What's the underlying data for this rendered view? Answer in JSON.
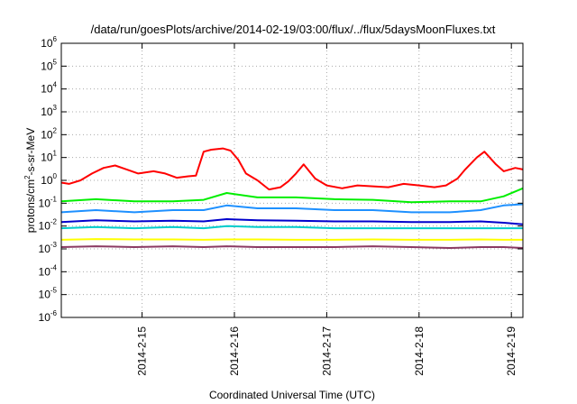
{
  "chart_data": {
    "type": "line",
    "title": "/data/run/goesPlots/archive/2014-02-19/03:00/flux/../flux/5daysMoonFluxes.txt",
    "xlabel": "Coordinated Universal Time (UTC)",
    "ylabel": {
      "pre": "protons/cm",
      "sup": "2",
      "post": "-s-sr-MeV"
    },
    "y_scale": "log",
    "ylim": [
      1e-06,
      1000000.0
    ],
    "y_ticks": [
      {
        "base": "10",
        "exp": "-6",
        "value": 1e-06
      },
      {
        "base": "10",
        "exp": "-5",
        "value": 1e-05
      },
      {
        "base": "10",
        "exp": "-4",
        "value": 0.0001
      },
      {
        "base": "10",
        "exp": "-3",
        "value": 0.001
      },
      {
        "base": "10",
        "exp": "-2",
        "value": 0.01
      },
      {
        "base": "10",
        "exp": "-1",
        "value": 0.1
      },
      {
        "base": "10",
        "exp": "0",
        "value": 1
      },
      {
        "base": "10",
        "exp": "1",
        "value": 10
      },
      {
        "base": "10",
        "exp": "2",
        "value": 100
      },
      {
        "base": "10",
        "exp": "3",
        "value": 1000
      },
      {
        "base": "10",
        "exp": "4",
        "value": 10000
      },
      {
        "base": "10",
        "exp": "5",
        "value": 100000
      },
      {
        "base": "10",
        "exp": "6",
        "value": 1000000
      }
    ],
    "xlim": [
      "2014-02-14T03:00",
      "2014-02-19T03:00"
    ],
    "x_ticks": [
      {
        "label": "2014-2-15",
        "value": "2014-02-15T00:00"
      },
      {
        "label": "2014-2-16",
        "value": "2014-02-16T00:00"
      },
      {
        "label": "2014-2-17",
        "value": "2014-02-17T00:00"
      },
      {
        "label": "2014-2-18",
        "value": "2014-02-18T00:00"
      },
      {
        "label": "2014-2-19",
        "value": "2014-02-19T00:00"
      }
    ],
    "grid": true,
    "series": [
      {
        "color": "#ff0000",
        "x": [
          "2014-02-14T03:00",
          "2014-02-14T05:00",
          "2014-02-14T08:00",
          "2014-02-14T11:00",
          "2014-02-14T14:00",
          "2014-02-14T17:00",
          "2014-02-14T20:00",
          "2014-02-14T23:00",
          "2014-02-15T03:00",
          "2014-02-15T06:00",
          "2014-02-15T09:00",
          "2014-02-15T12:00",
          "2014-02-15T14:00",
          "2014-02-15T16:00",
          "2014-02-15T18:00",
          "2014-02-15T21:00",
          "2014-02-15T23:00",
          "2014-02-16T01:00",
          "2014-02-16T03:00",
          "2014-02-16T06:00",
          "2014-02-16T09:00",
          "2014-02-16T12:00",
          "2014-02-16T14:00",
          "2014-02-16T16:00",
          "2014-02-16T18:00",
          "2014-02-16T21:00",
          "2014-02-17T00:00",
          "2014-02-17T04:00",
          "2014-02-17T08:00",
          "2014-02-17T12:00",
          "2014-02-17T16:00",
          "2014-02-17T20:00",
          "2014-02-18T00:00",
          "2014-02-18T04:00",
          "2014-02-18T07:00",
          "2014-02-18T10:00",
          "2014-02-18T12:00",
          "2014-02-18T15:00",
          "2014-02-18T17:00",
          "2014-02-18T20:00",
          "2014-02-18T22:00",
          "2014-02-19T01:00",
          "2014-02-19T03:00"
        ],
        "values": [
          0.8,
          0.7,
          1.0,
          2.0,
          3.5,
          4.5,
          3.0,
          2.0,
          2.5,
          2.0,
          1.3,
          1.5,
          1.6,
          18,
          22,
          25,
          20,
          8,
          2.0,
          1.0,
          0.4,
          0.5,
          0.9,
          2.0,
          5.0,
          1.2,
          0.6,
          0.45,
          0.6,
          0.55,
          0.5,
          0.7,
          0.6,
          0.5,
          0.6,
          1.2,
          3.0,
          10,
          18,
          5.0,
          2.5,
          3.5,
          3.0
        ]
      },
      {
        "color": "#00ee00",
        "x": [
          "2014-02-14T03:00",
          "2014-02-14T12:00",
          "2014-02-14T22:00",
          "2014-02-15T08:00",
          "2014-02-15T16:00",
          "2014-02-15T22:00",
          "2014-02-16T06:00",
          "2014-02-16T16:00",
          "2014-02-17T02:00",
          "2014-02-17T12:00",
          "2014-02-17T22:00",
          "2014-02-18T08:00",
          "2014-02-18T16:00",
          "2014-02-18T22:00",
          "2014-02-19T03:00"
        ],
        "values": [
          0.12,
          0.15,
          0.12,
          0.12,
          0.14,
          0.28,
          0.18,
          0.18,
          0.15,
          0.14,
          0.11,
          0.12,
          0.12,
          0.2,
          0.45
        ]
      },
      {
        "color": "#1e90ff",
        "x": [
          "2014-02-14T03:00",
          "2014-02-14T12:00",
          "2014-02-14T22:00",
          "2014-02-15T08:00",
          "2014-02-15T16:00",
          "2014-02-15T22:00",
          "2014-02-16T06:00",
          "2014-02-16T16:00",
          "2014-02-17T02:00",
          "2014-02-17T12:00",
          "2014-02-17T22:00",
          "2014-02-18T08:00",
          "2014-02-18T16:00",
          "2014-02-18T22:00",
          "2014-02-19T03:00"
        ],
        "values": [
          0.04,
          0.05,
          0.04,
          0.05,
          0.05,
          0.08,
          0.06,
          0.06,
          0.05,
          0.05,
          0.04,
          0.04,
          0.05,
          0.08,
          0.09
        ]
      },
      {
        "color": "#0000cc",
        "x": [
          "2014-02-14T03:00",
          "2014-02-14T12:00",
          "2014-02-14T22:00",
          "2014-02-15T08:00",
          "2014-02-15T16:00",
          "2014-02-15T22:00",
          "2014-02-16T06:00",
          "2014-02-16T16:00",
          "2014-02-17T02:00",
          "2014-02-17T12:00",
          "2014-02-17T22:00",
          "2014-02-18T08:00",
          "2014-02-18T16:00",
          "2014-02-18T22:00",
          "2014-02-19T03:00"
        ],
        "values": [
          0.015,
          0.018,
          0.016,
          0.017,
          0.016,
          0.02,
          0.018,
          0.017,
          0.016,
          0.016,
          0.015,
          0.015,
          0.016,
          0.014,
          0.012
        ]
      },
      {
        "color": "#00cccc",
        "x": [
          "2014-02-14T03:00",
          "2014-02-14T12:00",
          "2014-02-14T22:00",
          "2014-02-15T08:00",
          "2014-02-15T16:00",
          "2014-02-15T22:00",
          "2014-02-16T06:00",
          "2014-02-16T16:00",
          "2014-02-17T02:00",
          "2014-02-17T12:00",
          "2014-02-17T22:00",
          "2014-02-18T08:00",
          "2014-02-18T16:00",
          "2014-02-18T22:00",
          "2014-02-19T03:00"
        ],
        "values": [
          0.008,
          0.009,
          0.008,
          0.009,
          0.008,
          0.01,
          0.009,
          0.009,
          0.008,
          0.008,
          0.008,
          0.008,
          0.008,
          0.008,
          0.008
        ]
      },
      {
        "color": "#ffff00",
        "x": [
          "2014-02-14T03:00",
          "2014-02-14T12:00",
          "2014-02-14T22:00",
          "2014-02-15T08:00",
          "2014-02-15T16:00",
          "2014-02-15T22:00",
          "2014-02-16T06:00",
          "2014-02-16T16:00",
          "2014-02-17T02:00",
          "2014-02-17T12:00",
          "2014-02-17T22:00",
          "2014-02-18T08:00",
          "2014-02-18T16:00",
          "2014-02-18T22:00",
          "2014-02-19T03:00"
        ],
        "values": [
          0.0025,
          0.0027,
          0.0026,
          0.0026,
          0.0025,
          0.0026,
          0.0026,
          0.0025,
          0.0025,
          0.0026,
          0.0025,
          0.0025,
          0.0026,
          0.0025,
          0.0025
        ]
      },
      {
        "color": "#8b3a62",
        "x": [
          "2014-02-14T03:00",
          "2014-02-14T12:00",
          "2014-02-14T22:00",
          "2014-02-15T08:00",
          "2014-02-15T16:00",
          "2014-02-15T22:00",
          "2014-02-16T06:00",
          "2014-02-16T16:00",
          "2014-02-17T02:00",
          "2014-02-17T12:00",
          "2014-02-17T22:00",
          "2014-02-18T08:00",
          "2014-02-18T16:00",
          "2014-02-18T22:00",
          "2014-02-19T03:00"
        ],
        "values": [
          0.0012,
          0.0013,
          0.0012,
          0.0013,
          0.0012,
          0.0013,
          0.0012,
          0.0012,
          0.0012,
          0.0013,
          0.0012,
          0.0011,
          0.0012,
          0.0012,
          0.0011
        ]
      }
    ]
  }
}
